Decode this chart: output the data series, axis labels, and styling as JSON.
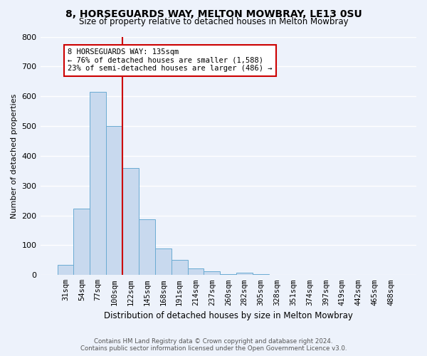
{
  "title": "8, HORSEGUARDS WAY, MELTON MOWBRAY, LE13 0SU",
  "subtitle": "Size of property relative to detached houses in Melton Mowbray",
  "xlabel": "Distribution of detached houses by size in Melton Mowbray",
  "ylabel": "Number of detached properties",
  "bar_labels": [
    "31sqm",
    "54sqm",
    "77sqm",
    "100sqm",
    "122sqm",
    "145sqm",
    "168sqm",
    "191sqm",
    "214sqm",
    "237sqm",
    "260sqm",
    "282sqm",
    "305sqm",
    "328sqm",
    "351sqm",
    "374sqm",
    "397sqm",
    "419sqm",
    "442sqm",
    "465sqm",
    "488sqm"
  ],
  "bar_heights": [
    33,
    222,
    615,
    500,
    358,
    188,
    88,
    50,
    22,
    13,
    3,
    8,
    3,
    1,
    0,
    0,
    0,
    0,
    0,
    0,
    0
  ],
  "bar_color": "#c8d9ee",
  "bar_edge_color": "#6aabd2",
  "vline_color": "#cc0000",
  "vline_index": 3.5,
  "ylim": [
    0,
    800
  ],
  "yticks": [
    0,
    100,
    200,
    300,
    400,
    500,
    600,
    700,
    800
  ],
  "annotation_title": "8 HORSEGUARDS WAY: 135sqm",
  "annotation_line1": "← 76% of detached houses are smaller (1,588)",
  "annotation_line2": "23% of semi-detached houses are larger (486) →",
  "footer_line1": "Contains HM Land Registry data © Crown copyright and database right 2024.",
  "footer_line2": "Contains public sector information licensed under the Open Government Licence v3.0.",
  "background_color": "#edf2fb",
  "grid_color": "white"
}
